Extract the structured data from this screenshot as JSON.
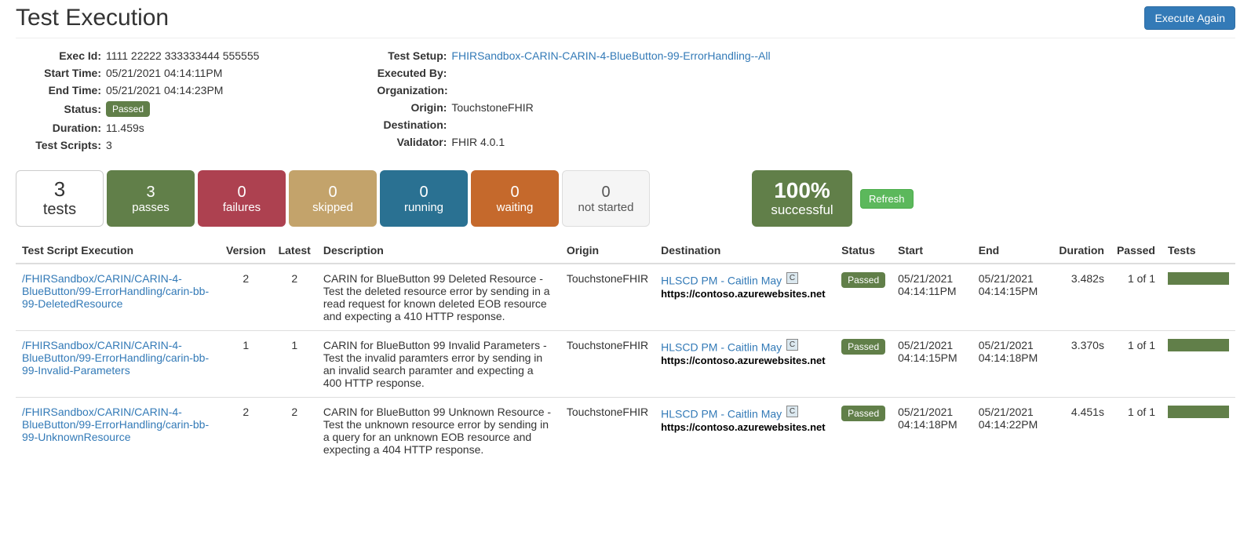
{
  "header": {
    "title": "Test Execution",
    "executeAgainLabel": "Execute Again"
  },
  "metaLeft": {
    "execIdLabel": "Exec Id:",
    "execId": "1111 22222 333333444 555555",
    "startTimeLabel": "Start Time:",
    "startTime": "05/21/2021 04:14:11PM",
    "endTimeLabel": "End Time:",
    "endTime": "05/21/2021 04:14:23PM",
    "statusLabel": "Status:",
    "statusBadge": "Passed",
    "durationLabel": "Duration:",
    "duration": "11.459s",
    "testScriptsLabel": "Test Scripts:",
    "testScripts": "3"
  },
  "metaRight": {
    "testSetupLabel": "Test Setup:",
    "testSetup": "FHIRSandbox-CARIN-CARIN-4-BlueButton-99-ErrorHandling--All",
    "executedByLabel": "Executed By:",
    "executedBy": "",
    "organizationLabel": "Organization:",
    "organization": "",
    "originLabel": "Origin:",
    "origin": "TouchstoneFHIR",
    "destinationLabel": "Destination:",
    "destination": "",
    "validatorLabel": "Validator:",
    "validator": "FHIR 4.0.1"
  },
  "tiles": {
    "tests": {
      "num": "3",
      "label": "tests"
    },
    "passes": {
      "num": "3",
      "label": "passes"
    },
    "failures": {
      "num": "0",
      "label": "failures"
    },
    "skipped": {
      "num": "0",
      "label": "skipped"
    },
    "running": {
      "num": "0",
      "label": "running"
    },
    "waiting": {
      "num": "0",
      "label": "waiting"
    },
    "notstarted": {
      "num": "0",
      "label": "not started"
    },
    "success": {
      "num": "100%",
      "label": "successful"
    },
    "refreshLabel": "Refresh"
  },
  "table": {
    "headers": {
      "script": "Test Script Execution",
      "version": "Version",
      "latest": "Latest",
      "description": "Description",
      "origin": "Origin",
      "destination": "Destination",
      "status": "Status",
      "start": "Start",
      "end": "End",
      "duration": "Duration",
      "passed": "Passed",
      "tests": "Tests"
    },
    "rows": [
      {
        "script": "/FHIRSandbox/CARIN/CARIN-4-BlueButton/99-ErrorHandling/carin-bb-99-DeletedResource",
        "version": "2",
        "latest": "2",
        "description": "CARIN for BlueButton 99 Deleted Resource - Test the deleted resource error by sending in a read request for known deleted EOB resource and expecting a 410 HTTP response.",
        "origin": "TouchstoneFHIR",
        "destLink": "HLSCD PM - Caitlin May",
        "destBadge": "C",
        "destUrl": "https://contoso.azurewebsites.net",
        "status": "Passed",
        "start": "05/21/2021 04:14:11PM",
        "end": "05/21/2021 04:14:15PM",
        "duration": "3.482s",
        "passed": "1 of 1"
      },
      {
        "script": "/FHIRSandbox/CARIN/CARIN-4-BlueButton/99-ErrorHandling/carin-bb-99-Invalid-Parameters",
        "version": "1",
        "latest": "1",
        "description": "CARIN for BlueButton 99 Invalid Parameters - Test the invalid paramters error by sending in an invalid search paramter and expecting a 400 HTTP response.",
        "origin": "TouchstoneFHIR",
        "destLink": "HLSCD PM - Caitlin May",
        "destBadge": "C",
        "destUrl": "https://contoso.azurewebsites.net",
        "status": "Passed",
        "start": "05/21/2021 04:14:15PM",
        "end": "05/21/2021 04:14:18PM",
        "duration": "3.370s",
        "passed": "1 of 1"
      },
      {
        "script": "/FHIRSandbox/CARIN/CARIN-4-BlueButton/99-ErrorHandling/carin-bb-99-UnknownResource",
        "version": "2",
        "latest": "2",
        "description": "CARIN for BlueButton 99 Unknown Resource - Test the unknown resource error by sending in a query for an unknown EOB resource and expecting a 404 HTTP response.",
        "origin": "TouchstoneFHIR",
        "destLink": "HLSCD PM - Caitlin May",
        "destBadge": "C",
        "destUrl": "https://contoso.azurewebsites.net",
        "status": "Passed",
        "start": "05/21/2021 04:14:18PM",
        "end": "05/21/2021 04:14:22PM",
        "duration": "4.451s",
        "passed": "1 of 1"
      }
    ]
  },
  "colors": {
    "link": "#337ab7",
    "passBadge": "#617f49",
    "tilePasses": "#617f49",
    "tileFailures": "#ad4150",
    "tileSkipped": "#c3a36b",
    "tileRunning": "#2a7192",
    "tileWaiting": "#c5692c",
    "tileNotStarted": "#f5f5f5",
    "tileSuccess": "#617f49"
  }
}
